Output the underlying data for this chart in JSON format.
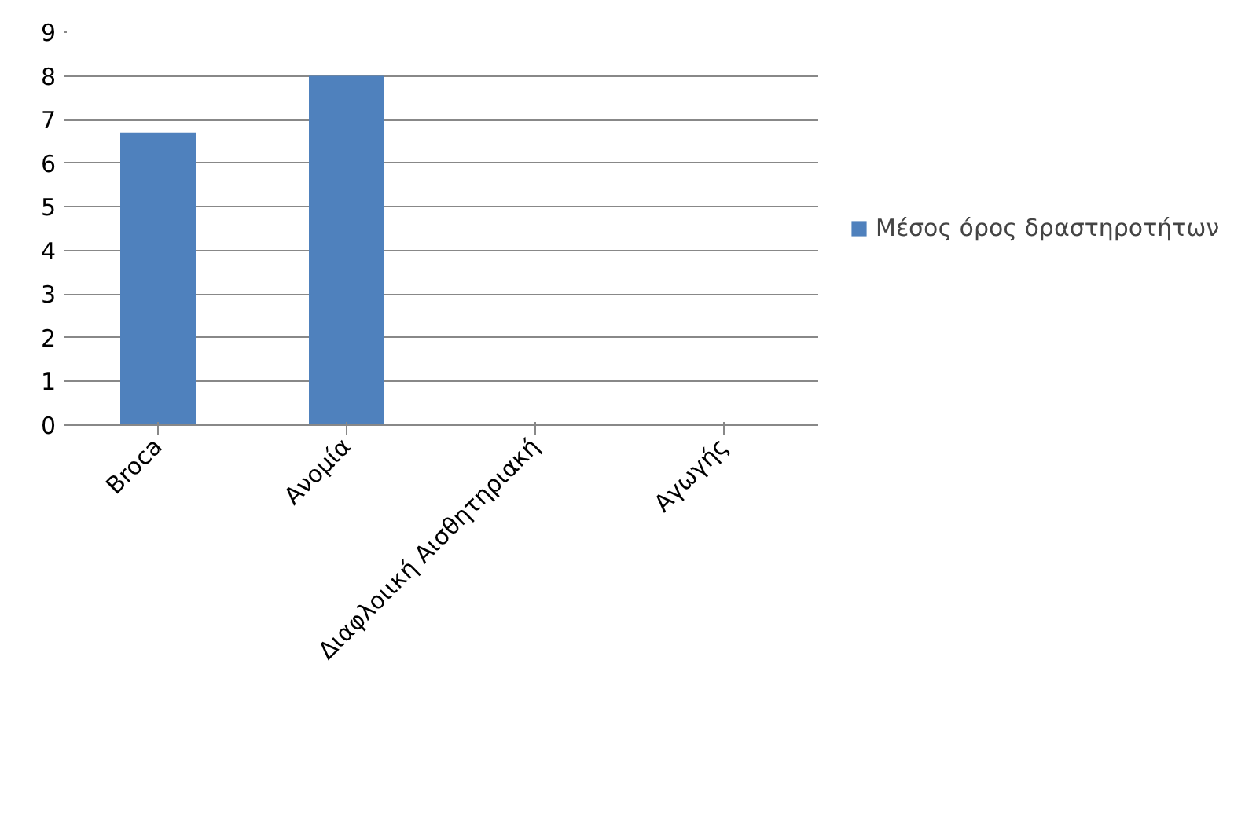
{
  "chart_data": {
    "type": "bar",
    "categories": [
      "Broca",
      "Ανομία",
      "Διαφλοιική Αισθητηριακή",
      "Αγωγής"
    ],
    "series": [
      {
        "name": "Μέσος όρος δραστηροτήτων",
        "color": "#4f81bd",
        "values": [
          6.7,
          8,
          null,
          null
        ]
      }
    ],
    "ylim": [
      0,
      9
    ],
    "yticks": [
      0,
      1,
      2,
      3,
      4,
      5,
      6,
      7,
      8,
      9
    ],
    "grid": "y",
    "legend": "right"
  }
}
